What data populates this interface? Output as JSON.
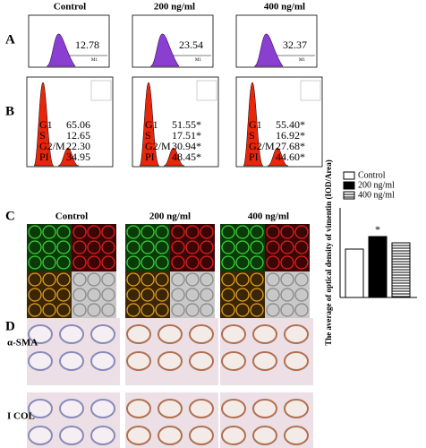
{
  "headers_top": [
    "Control",
    "200 ng/ml",
    "400 ng/ml"
  ],
  "panel_labels": [
    "A",
    "B",
    "C",
    "D"
  ],
  "panel_a": {
    "values": [
      "12.78",
      "23.54",
      "32.37"
    ],
    "marker": "M1"
  },
  "panel_b": {
    "stat_labels": [
      "G1",
      "S",
      "G2/M",
      "PI"
    ],
    "columns": [
      [
        "65.06",
        "12.65",
        "22.30",
        "34.95"
      ],
      [
        "51.55*",
        "17.51*",
        "30.94*",
        "48.45*"
      ],
      [
        "55.40*",
        "16.92*",
        "27.68*",
        "44.60*"
      ]
    ]
  },
  "panel_c": {
    "headers": [
      "Control",
      "200 ng/ml",
      "400 ng/ml"
    ]
  },
  "panel_d": {
    "row_labels": [
      "α-SMA",
      "I COL"
    ]
  },
  "chart_data": {
    "type": "bar",
    "ylabel": "The average of optical density of vimentin (IOD/Area)",
    "series": [
      {
        "name": "Control",
        "color": "#ffffff",
        "values": [
          10.8
        ]
      },
      {
        "name": "200 ng/ml",
        "color": "#000000",
        "values": [
          13.6
        ]
      },
      {
        "name": "400 ng/ml",
        "color": "striped",
        "values": [
          12.2
        ]
      }
    ],
    "ylim": [
      0,
      20
    ],
    "annotation": "*"
  }
}
